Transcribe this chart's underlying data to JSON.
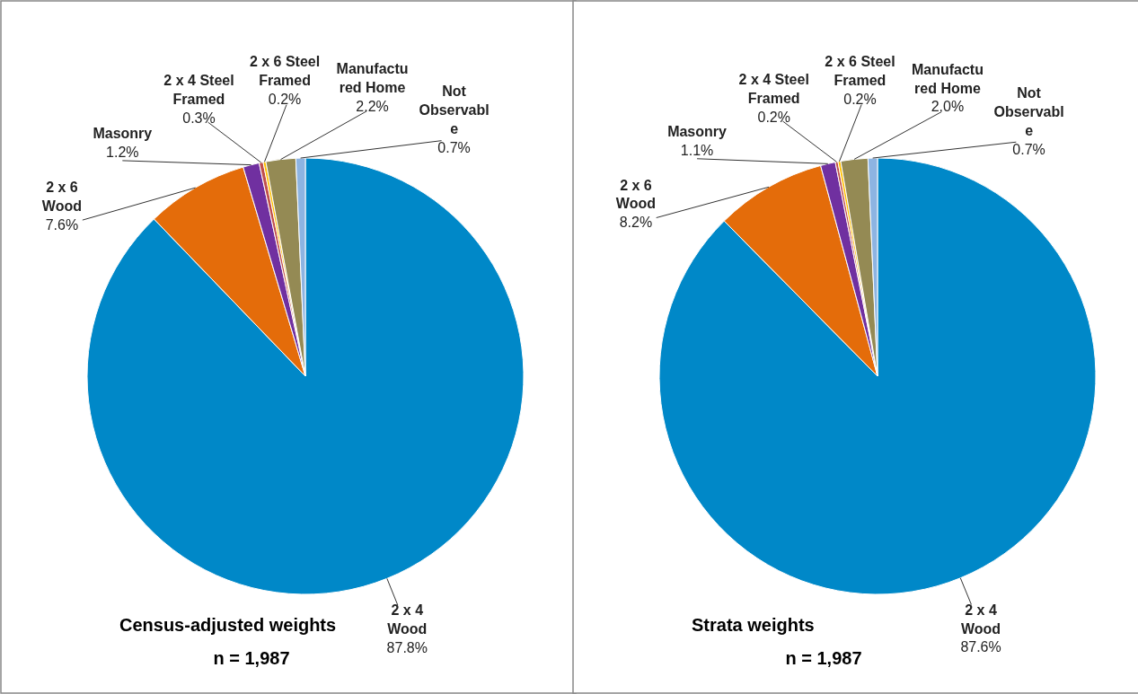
{
  "chart_data": [
    {
      "type": "pie",
      "title": "Census-adjusted weights",
      "subtitle": "n = 1,987",
      "categories": [
        "2 x 4 Wood",
        "2 x 6 Wood",
        "Masonry",
        "2 x 4 Steel Framed",
        "2 x 6 Steel Framed",
        "Manufactured Home",
        "Not Observable"
      ],
      "values": [
        87.8,
        7.6,
        1.2,
        0.3,
        0.2,
        2.2,
        0.7
      ],
      "colors": [
        "#0088c8",
        "#e46c0a",
        "#7030a0",
        "#c0504d",
        "#ffc000",
        "#948a54",
        "#8db4e2"
      ],
      "value_labels": [
        "87.8%",
        "7.6%",
        "1.2%",
        "0.3%",
        "0.2%",
        "2.2%",
        "0.7%"
      ]
    },
    {
      "type": "pie",
      "title": "Strata weights",
      "subtitle": "n = 1,987",
      "categories": [
        "2 x 4 Wood",
        "2 x 6 Wood",
        "Masonry",
        "2 x 4 Steel Framed",
        "2 x 6 Steel Framed",
        "Manufactured Home",
        "Not Observable"
      ],
      "values": [
        87.6,
        8.2,
        1.1,
        0.2,
        0.2,
        2.0,
        0.7
      ],
      "colors": [
        "#0088c8",
        "#e46c0a",
        "#7030a0",
        "#c0504d",
        "#ffc000",
        "#948a54",
        "#8db4e2"
      ],
      "value_labels": [
        "87.6%",
        "8.2%",
        "1.1%",
        "0.2%",
        "0.2%",
        "2.0%",
        "0.7%"
      ]
    }
  ]
}
